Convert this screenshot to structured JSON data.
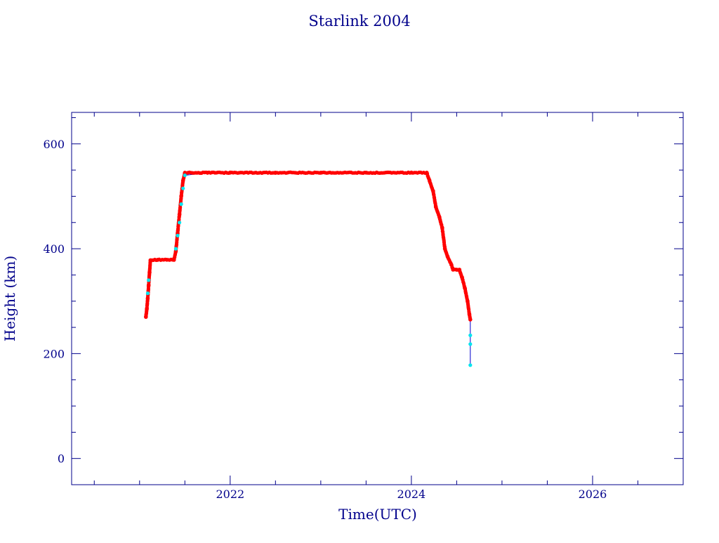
{
  "chart_data": {
    "type": "line",
    "title": "Starlink 2004",
    "xlabel": "Time(UTC)",
    "ylabel": "Height (km)",
    "xlim": [
      2020.25,
      2027.0
    ],
    "ylim": [
      -50,
      660
    ],
    "x_ticks": [
      {
        "value": 2022,
        "label": "2022"
      },
      {
        "value": 2024,
        "label": "2024"
      },
      {
        "value": 2026,
        "label": "2026"
      }
    ],
    "y_ticks": [
      {
        "value": 0,
        "label": "0"
      },
      {
        "value": 200,
        "label": "200"
      },
      {
        "value": 400,
        "label": "400"
      },
      {
        "value": 600,
        "label": "600"
      }
    ],
    "grid": false,
    "colors": {
      "axis": "#00008b",
      "line": "#0000cd",
      "primary_marker": "#ff0000",
      "secondary_marker": "#00e5ee"
    },
    "series": [
      {
        "marker_color": "#ff0000",
        "points": [
          [
            2021.07,
            270
          ],
          [
            2021.08,
            285
          ],
          [
            2021.09,
            305
          ],
          [
            2021.1,
            330
          ],
          [
            2021.11,
            355
          ],
          [
            2021.12,
            378
          ],
          [
            2021.2,
            379
          ],
          [
            2021.3,
            379
          ],
          [
            2021.38,
            379
          ],
          [
            2021.4,
            395
          ],
          [
            2021.42,
            430
          ],
          [
            2021.44,
            465
          ],
          [
            2021.46,
            500
          ],
          [
            2021.48,
            530
          ],
          [
            2021.5,
            545
          ],
          [
            2021.75,
            545
          ],
          [
            2022.0,
            545
          ],
          [
            2022.5,
            545
          ],
          [
            2023.0,
            545
          ],
          [
            2023.5,
            545
          ],
          [
            2024.0,
            545
          ],
          [
            2024.17,
            545
          ],
          [
            2024.2,
            530
          ],
          [
            2024.24,
            510
          ],
          [
            2024.27,
            480
          ],
          [
            2024.31,
            460
          ],
          [
            2024.34,
            440
          ],
          [
            2024.37,
            400
          ],
          [
            2024.4,
            385
          ],
          [
            2024.44,
            370
          ],
          [
            2024.46,
            360
          ],
          [
            2024.5,
            360
          ],
          [
            2024.53,
            360
          ],
          [
            2024.56,
            345
          ],
          [
            2024.59,
            325
          ],
          [
            2024.62,
            300
          ],
          [
            2024.64,
            275
          ],
          [
            2024.65,
            265
          ]
        ]
      },
      {
        "marker_color": "#00e5ee",
        "points": [
          [
            2021.09,
            315
          ],
          [
            2021.1,
            340
          ],
          [
            2021.4,
            400
          ],
          [
            2021.42,
            425
          ],
          [
            2021.44,
            450
          ],
          [
            2021.46,
            485
          ],
          [
            2021.48,
            515
          ],
          [
            2021.5,
            540
          ],
          [
            2024.65,
            235
          ],
          [
            2024.65,
            218
          ],
          [
            2024.65,
            178
          ]
        ]
      }
    ]
  }
}
